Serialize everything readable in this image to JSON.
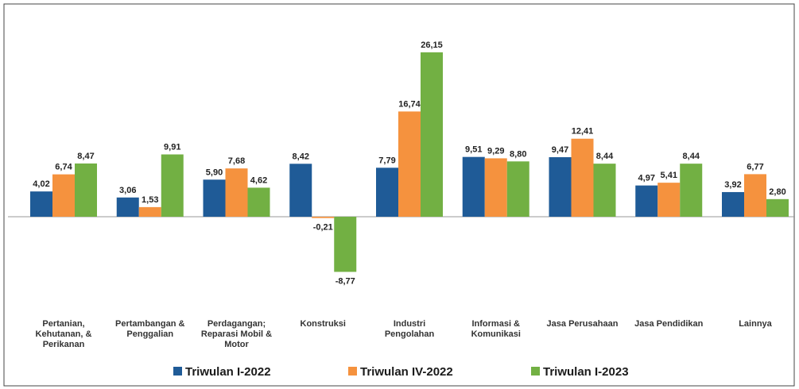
{
  "chart_data": {
    "type": "bar",
    "categories": [
      "Pertanian, Kehutanan, & Perikanan",
      "Pertambangan & Penggalian",
      "Perdagangan; Reparasi Mobil & Motor",
      "Konstruksi",
      "Industri Pengolahan",
      "Informasi & Komunikasi",
      "Jasa Perusahaan",
      "Jasa Pendidikan",
      "Lainnya"
    ],
    "series": [
      {
        "name": "Triwulan I-2022",
        "color": "#1f5b97",
        "values": [
          4.02,
          3.06,
          5.9,
          8.42,
          7.79,
          9.51,
          9.47,
          4.97,
          3.92
        ],
        "value_labels": [
          "4,02",
          "3,06",
          "5,90",
          "8,42",
          "7,79",
          "9,51",
          "9,47",
          "4,97",
          "3,92"
        ]
      },
      {
        "name": "Triwulan IV-2022",
        "color": "#f5923e",
        "values": [
          6.74,
          1.53,
          7.68,
          -0.21,
          16.74,
          9.29,
          12.41,
          5.41,
          6.77
        ],
        "value_labels": [
          "6,74",
          "1,53",
          "7,68",
          "-0,21",
          "16,74",
          "9,29",
          "12,41",
          "5,41",
          "6,77"
        ]
      },
      {
        "name": "Triwulan I-2023",
        "color": "#72b043",
        "values": [
          8.47,
          9.91,
          4.62,
          -8.77,
          26.15,
          8.8,
          8.44,
          8.44,
          2.8
        ],
        "value_labels": [
          "8,47",
          "9,91",
          "4,62",
          "-8,77",
          "26,15",
          "8,80",
          "8,44",
          "8,44",
          "2,80"
        ]
      }
    ],
    "legend": "bottom"
  }
}
